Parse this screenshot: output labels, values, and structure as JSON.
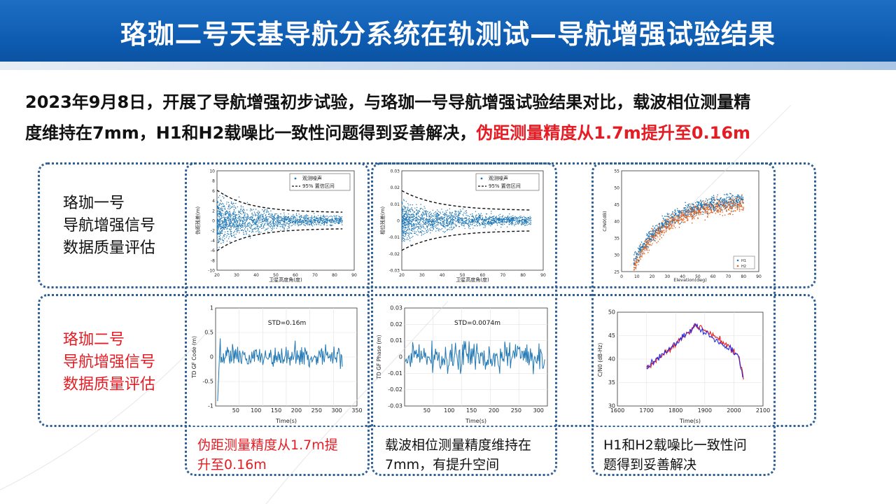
{
  "header": {
    "title": "珞珈二号天基导航分系统在轨测试—导航增强试验结果"
  },
  "summary": {
    "line1": "2023年9月8日，开展了导航增强初步试验，与珞珈一号导航增强试验结果对比，载波相位测量精",
    "line2_plain": "度维持在7mm，H1和H2载噪比一致性问题得到妥善解决，",
    "line2_highlight": "伪距测量精度从1.7m提升至0.16m"
  },
  "rows": [
    {
      "label_lines": [
        "珞珈一号",
        "导航增强信号",
        "数据质量评估"
      ],
      "color": "#111111"
    },
    {
      "label_lines": [
        "珞珈二号",
        "导航增强信号",
        "数据质量评估"
      ],
      "color": "#e51c23"
    }
  ],
  "plots": {
    "lj1_code": {
      "xlabel": "卫星高度角(度)",
      "ylabel": "伪距残差(m)",
      "xticks": [
        "20",
        "30",
        "40",
        "50",
        "60",
        "70",
        "80",
        "90"
      ],
      "yticks": [
        "10",
        "8",
        "6",
        "4",
        "2",
        "0",
        "-2",
        "-4",
        "-6",
        "-8",
        "-10"
      ],
      "legend": [
        "观测噪声",
        "95% 置信区间"
      ]
    },
    "lj1_phase": {
      "xlabel": "卫星高度角(度)",
      "ylabel": "相位残差(m)",
      "xticks": [
        "20",
        "30",
        "40",
        "50",
        "60",
        "70",
        "80",
        "90"
      ],
      "yticks": [
        "0.03",
        "0.02",
        "0.01",
        "0",
        "-0.01",
        "-0.02",
        "-0.03"
      ],
      "legend": [
        "观测噪声",
        "95% 置信区间"
      ]
    },
    "lj1_cn0": {
      "xlabel": "Elevation(deg)",
      "ylabel": "C/N0(dB)",
      "xticks": [
        "0",
        "10",
        "20",
        "30",
        "40",
        "50",
        "60",
        "70",
        "80",
        "90"
      ],
      "yticks": [
        "55",
        "50",
        "45",
        "40",
        "35",
        "30",
        "25"
      ],
      "legend": [
        "H1",
        "H2"
      ]
    },
    "lj2_code": {
      "std": "STD=0.16m",
      "xlabel": "Time(s)",
      "ylabel": "TD GF Code (m)",
      "xticks": [
        "50",
        "100",
        "150",
        "200",
        "250",
        "300",
        "350"
      ],
      "yticks": [
        "1",
        "0.5",
        "0",
        "-0.5",
        "-1"
      ]
    },
    "lj2_phase": {
      "std": "STD=0.0074m",
      "xlabel": "Time(s)",
      "ylabel": "TD GF Phase (m)",
      "xticks": [
        "50",
        "100",
        "150",
        "200",
        "250",
        "300"
      ],
      "yticks": [
        "0.03",
        "0.02",
        "0.01",
        "0",
        "-0.01",
        "-0.02",
        "-0.03"
      ]
    },
    "lj2_cn0": {
      "xlabel": "Time(s)",
      "ylabel": "C/N0 (dB-Hz)",
      "xticks": [
        "1600",
        "1700",
        "1800",
        "1900",
        "2000",
        "2100"
      ],
      "yticks": [
        "50",
        "45",
        "40",
        "35",
        "30"
      ]
    }
  },
  "captions": {
    "code": [
      "伪距测量精度从1.7m提",
      "升至0.16m"
    ],
    "phase": [
      "载波相位测量精度维持在",
      "7mm，有提升空间"
    ],
    "cn0": [
      "H1和H2载噪比一致性问",
      "题得到妥善解决"
    ]
  },
  "colors": {
    "banner": "#0d5bb0",
    "frame": "#2e5f96",
    "highlight": "#e51c23",
    "series_blue": "#1f77b4",
    "series_orange": "#e8621e",
    "series_h1": "#2a2ae0",
    "series_h2": "#e41a1c"
  }
}
